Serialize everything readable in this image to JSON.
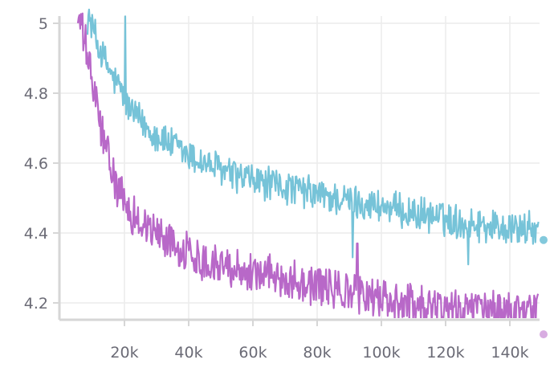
{
  "chart_data": {
    "type": "line",
    "title": "",
    "xlabel": "",
    "ylabel": "",
    "xlim": [
      0,
      150000
    ],
    "ylim": [
      4.15,
      5.0
    ],
    "x_ticks": [
      {
        "value": 20000,
        "label": "20k"
      },
      {
        "value": 40000,
        "label": "40k"
      },
      {
        "value": 60000,
        "label": "60k"
      },
      {
        "value": 80000,
        "label": "80k"
      },
      {
        "value": 100000,
        "label": "100k"
      },
      {
        "value": 120000,
        "label": "120k"
      },
      {
        "value": 140000,
        "label": "140k"
      }
    ],
    "y_ticks": [
      {
        "value": 4.2,
        "label": "4.2"
      },
      {
        "value": 4.4,
        "label": "4.4"
      },
      {
        "value": 4.6,
        "label": "4.6"
      },
      {
        "value": 4.8,
        "label": "4.8"
      },
      {
        "value": 5.0,
        "label": "5"
      }
    ],
    "grid": true,
    "legend": "none",
    "series": [
      {
        "color": "#76c3d8",
        "x": [
          8500,
          10000,
          12000,
          14000,
          16000,
          18000,
          19500,
          20200,
          21000,
          23000,
          26000,
          30000,
          35000,
          40000,
          45000,
          50000,
          55000,
          60000,
          65000,
          70000,
          75000,
          80000,
          85000,
          90000,
          95000,
          100000,
          105000,
          110000,
          115000,
          120000,
          125000,
          130000,
          135000,
          140000,
          145000,
          149000
        ],
        "y": [
          5.02,
          4.99,
          4.93,
          4.89,
          4.85,
          4.82,
          4.8,
          4.78,
          4.76,
          4.74,
          4.71,
          4.68,
          4.65,
          4.62,
          4.6,
          4.58,
          4.56,
          4.55,
          4.54,
          4.53,
          4.52,
          4.51,
          4.5,
          4.49,
          4.485,
          4.475,
          4.465,
          4.455,
          4.45,
          4.44,
          4.43,
          4.425,
          4.42,
          4.415,
          4.41,
          4.41
        ],
        "spikes": [
          {
            "x": 20300,
            "y": 5.02
          },
          {
            "x": 91000,
            "y": 4.33
          },
          {
            "x": 127000,
            "y": 4.31
          }
        ],
        "end_marker": {
          "x": 150500,
          "y": 4.38
        }
      },
      {
        "color": "#b868c8",
        "x": [
          5500,
          7000,
          8000,
          9000,
          10000,
          11000,
          12000,
          14000,
          16000,
          18000,
          20000,
          22000,
          25000,
          28000,
          30000,
          35000,
          40000,
          45000,
          50000,
          55000,
          60000,
          65000,
          70000,
          75000,
          80000,
          85000,
          90000,
          95000,
          100000,
          105000,
          110000,
          115000,
          120000,
          125000,
          130000,
          135000,
          140000,
          145000,
          149000
        ],
        "y": [
          5.02,
          4.97,
          4.93,
          4.88,
          4.83,
          4.78,
          4.73,
          4.65,
          4.58,
          4.52,
          4.48,
          4.46,
          4.43,
          4.41,
          4.4,
          4.37,
          4.34,
          4.32,
          4.31,
          4.3,
          4.29,
          4.28,
          4.27,
          4.26,
          4.25,
          4.24,
          4.23,
          4.22,
          4.21,
          4.205,
          4.2,
          4.195,
          4.19,
          4.185,
          4.18,
          4.178,
          4.175,
          4.172,
          4.17
        ],
        "spikes": [
          {
            "x": 92500,
            "y": 4.37
          }
        ],
        "end_marker": {
          "x": 150500,
          "y": 4.11
        }
      }
    ]
  }
}
